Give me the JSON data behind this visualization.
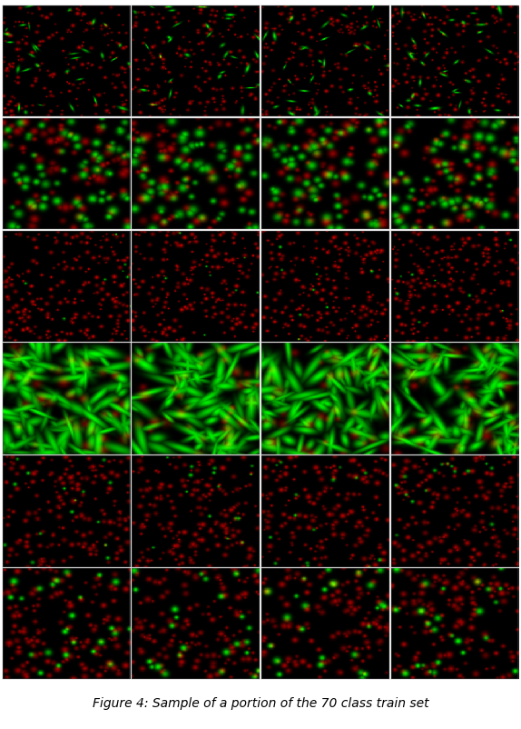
{
  "nrows": 6,
  "ncols": 4,
  "fig_width": 5.74,
  "fig_height": 8.02,
  "caption": "Figure 4: Sample of a portion of the 70 class train set",
  "caption_fontsize": 10,
  "row_styles": [
    {
      "red_count": 200,
      "green_count": 30,
      "red_r": 3.5,
      "green_r": 4.5,
      "red_bright": 0.75,
      "green_bright": 1.0,
      "green_elongated": true,
      "green_elongation": 2.5
    },
    {
      "red_count": 80,
      "green_count": 70,
      "red_r": 8,
      "green_r": 9,
      "red_bright": 0.65,
      "green_bright": 0.85,
      "green_elongated": false,
      "green_elongation": 1.0
    },
    {
      "red_count": 220,
      "green_count": 8,
      "red_r": 4,
      "green_r": 3,
      "red_bright": 0.8,
      "green_bright": 0.9,
      "green_elongated": false,
      "green_elongation": 1.0
    },
    {
      "red_count": 40,
      "green_count": 100,
      "red_r": 10,
      "green_r": 14,
      "red_bright": 0.5,
      "green_bright": 1.0,
      "green_elongated": true,
      "green_elongation": 3.5
    },
    {
      "red_count": 180,
      "green_count": 15,
      "red_r": 5,
      "green_r": 4,
      "red_bright": 0.7,
      "green_bright": 0.8,
      "green_elongated": false,
      "green_elongation": 1.0
    },
    {
      "red_count": 150,
      "green_count": 25,
      "red_r": 6,
      "green_r": 7,
      "red_bright": 0.65,
      "green_bright": 1.0,
      "green_elongated": false,
      "green_elongation": 1.0
    }
  ]
}
